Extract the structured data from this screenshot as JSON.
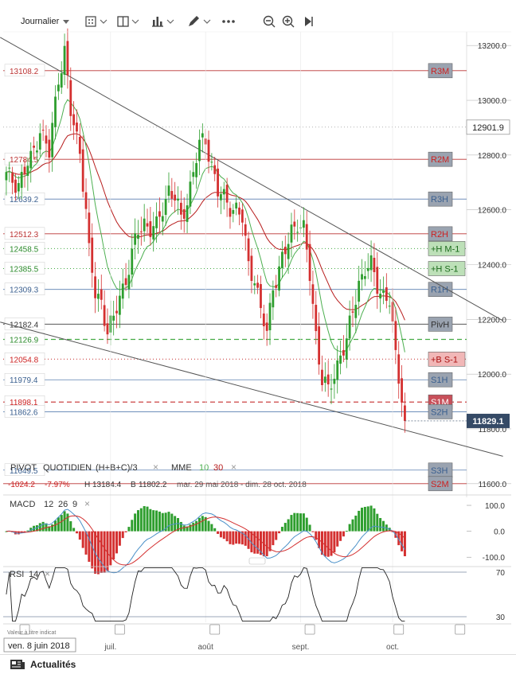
{
  "toolbar": {
    "period_label": "Journalier",
    "icons": [
      "chevron-down-icon",
      "calendar-grid-icon",
      "layout-split-icon",
      "bar-chart-icon",
      "pencil-icon",
      "more-icon",
      "zoom-out-icon",
      "zoom-in-icon",
      "play-icon"
    ]
  },
  "footer": {
    "date_badge": "ven. 8 juin 2018",
    "disclaimer": "Valeur à titre indicat",
    "news_label": "Actualités"
  },
  "colors": {
    "up": "#2e9e2e",
    "down": "#d43030",
    "sma_fast": "#4caf50",
    "sma_slow": "#b71c1c",
    "macd_line": "#4a90c8",
    "signal_line": "#d43030",
    "price_badge": "#354a66"
  },
  "chart_data": [
    {
      "type": "candlestick",
      "title": "",
      "legend": {
        "pivot_name": "PIVOT",
        "pivot_period": "QUOTIDIEN",
        "pivot_formula": "(H+B+C)/3",
        "ma_name": "MME",
        "ma_fast": "10",
        "ma_slow": "30"
      },
      "stats": {
        "change": "-1024.2",
        "change_pct": "-7.97%",
        "high_label": "H",
        "high": "13184.4",
        "low_label": "B",
        "low": "11802.2",
        "range": "mar. 29 mai 2018 - dim. 28 oct. 2018"
      },
      "ylim": [
        11550,
        13250
      ],
      "y_ticks": [
        11600,
        11800,
        12000,
        12200,
        12400,
        12600,
        12800,
        13000,
        13200
      ],
      "y_tick_labels": [
        "11600.0",
        "11800.0",
        "12000.0",
        "12200.0",
        "12400.0",
        "12600.0",
        "12800.0",
        "13000.0",
        "13200.0"
      ],
      "x_ticks": [
        {
          "day": 34,
          "label": "juil."
        },
        {
          "day": 65,
          "label": "août"
        },
        {
          "day": 96,
          "label": "sept."
        },
        {
          "day": 126,
          "label": "oct."
        }
      ],
      "last_price": "11829.1",
      "reference_line": "12901.9",
      "levels": [
        {
          "value": 13108.2,
          "label": "13108.2",
          "tag": "R3M",
          "style": "red"
        },
        {
          "value": 12784.5,
          "label": "12784.5",
          "tag": "R2M",
          "style": "red"
        },
        {
          "value": 12639.2,
          "label": "12639.2",
          "tag": "R3H",
          "style": "blue"
        },
        {
          "value": 12512.3,
          "label": "12512.3",
          "tag": "R2H",
          "style": "red"
        },
        {
          "value": 12458.5,
          "label": "12458.5",
          "tag": "+H M-1",
          "style": "green-dot"
        },
        {
          "value": 12385.5,
          "label": "12385.5",
          "tag": "+H S-1",
          "style": "green-dot"
        },
        {
          "value": 12309.3,
          "label": "12309.3",
          "tag": "R1H",
          "style": "blue"
        },
        {
          "value": 12182.4,
          "label": "12182.4",
          "tag": "PivH",
          "style": "dark"
        },
        {
          "value": 12126.9,
          "label": "12126.9",
          "tag": "",
          "style": "green-dash"
        },
        {
          "value": 12054.8,
          "label": "12054.8",
          "tag": "+B S-1",
          "style": "red-dot"
        },
        {
          "value": 11979.4,
          "label": "11979.4",
          "tag": "S1H",
          "style": "blue"
        },
        {
          "value": 11898.1,
          "label": "11898.1",
          "tag": "S1M",
          "style": "red-dash"
        },
        {
          "value": 11862.6,
          "label": "11862.6",
          "tag": "S2H",
          "style": "blue"
        },
        {
          "value": 11649.5,
          "label": "11649.5",
          "tag": "S3H",
          "style": "blue"
        },
        {
          "value": 11600.0,
          "label": "",
          "tag": "S2M",
          "style": "red"
        }
      ],
      "trendlines": [
        {
          "from": [
            -2,
            13230
          ],
          "to": [
            162,
            12195
          ]
        },
        {
          "from": [
            -2,
            12190
          ],
          "to": [
            162,
            11700
          ]
        }
      ],
      "days": 140
    },
    {
      "type": "macd",
      "title": "MACD",
      "params": [
        "12",
        "26",
        "9"
      ],
      "ylim": [
        -130,
        140
      ],
      "y_ticks": [
        100,
        0,
        -100
      ],
      "y_tick_labels": [
        "100.0",
        "0.0",
        "-100.0"
      ]
    },
    {
      "type": "line",
      "title": "RSI",
      "params": [
        "14"
      ],
      "ylim": [
        25,
        75
      ],
      "y_ticks": [
        70,
        30
      ],
      "y_tick_labels": [
        "70",
        "30"
      ]
    }
  ]
}
